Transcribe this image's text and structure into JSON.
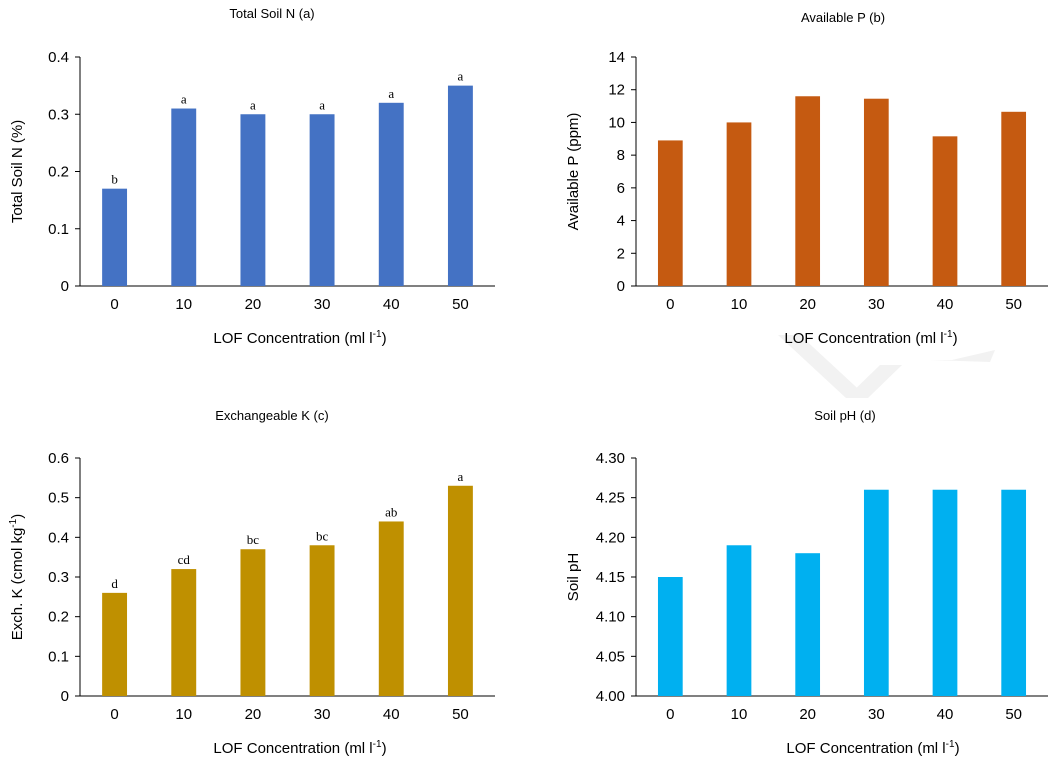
{
  "chart_data": [
    {
      "type": "bar",
      "title": "Total Soil N (a)",
      "xlabel": "LOF Concentration (ml l",
      "xlabel_sup": "-1",
      "xlabel_end": ")",
      "ylabel": "Total Soil N (%)",
      "categories": [
        "0",
        "10",
        "20",
        "30",
        "40",
        "50"
      ],
      "values": [
        0.17,
        0.31,
        0.3,
        0.3,
        0.32,
        0.35
      ],
      "letters": [
        "b",
        "a",
        "a",
        "a",
        "a",
        "a"
      ],
      "ylim": [
        0,
        0.4
      ],
      "yticks": [
        0,
        0.1,
        0.2,
        0.3,
        0.4
      ],
      "ytick_labels": [
        "0",
        "0.1",
        "0.2",
        "0.3",
        "0.4"
      ],
      "color": "#4472C4",
      "grid": false
    },
    {
      "type": "bar",
      "title": "Available P (b)",
      "xlabel": "LOF Concentration (ml l",
      "xlabel_sup": "-1",
      "xlabel_end": ")",
      "ylabel": "Available P (ppm)",
      "categories": [
        "0",
        "10",
        "20",
        "30",
        "40",
        "50"
      ],
      "values": [
        8.9,
        10.0,
        11.6,
        11.45,
        9.15,
        10.65
      ],
      "letters": [],
      "ylim": [
        0,
        14
      ],
      "yticks": [
        0,
        2,
        4,
        6,
        8,
        10,
        12,
        14
      ],
      "ytick_labels": [
        "0",
        "2",
        "4",
        "6",
        "8",
        "10",
        "12",
        "14"
      ],
      "color": "#C55A11",
      "grid": false
    },
    {
      "type": "bar",
      "title": "Exchangeable K (c)",
      "xlabel": "LOF Concentration (ml l",
      "xlabel_sup": "-1",
      "xlabel_end": ")",
      "ylabel": "Exch. K (cmol kg",
      "ylabel_sup": "-1",
      "ylabel_end": ")",
      "categories": [
        "0",
        "10",
        "20",
        "30",
        "40",
        "50"
      ],
      "values": [
        0.26,
        0.32,
        0.37,
        0.38,
        0.44,
        0.53
      ],
      "letters": [
        "d",
        "cd",
        "bc",
        "bc",
        "ab",
        "a"
      ],
      "ylim": [
        0,
        0.6
      ],
      "yticks": [
        0,
        0.1,
        0.2,
        0.3,
        0.4,
        0.5,
        0.6
      ],
      "ytick_labels": [
        "0",
        "0.1",
        "0.2",
        "0.3",
        "0.4",
        "0.5",
        "0.6"
      ],
      "color": "#BF9000",
      "grid": false
    },
    {
      "type": "bar",
      "title": "Soil pH (d)",
      "xlabel": "LOF Concentration (ml l",
      "xlabel_sup": "-1",
      "xlabel_end": ")",
      "ylabel": "Soil pH",
      "categories": [
        "0",
        "10",
        "20",
        "30",
        "40",
        "50"
      ],
      "values": [
        4.15,
        4.19,
        4.18,
        4.26,
        4.26,
        4.26
      ],
      "letters": [],
      "ylim": [
        4.0,
        4.3
      ],
      "yticks": [
        4.0,
        4.05,
        4.1,
        4.15,
        4.2,
        4.25,
        4.3
      ],
      "ytick_labels": [
        "4.00",
        "4.05",
        "4.10",
        "4.15",
        "4.20",
        "4.25",
        "4.30"
      ],
      "color": "#00B0F0",
      "grid": false
    }
  ]
}
